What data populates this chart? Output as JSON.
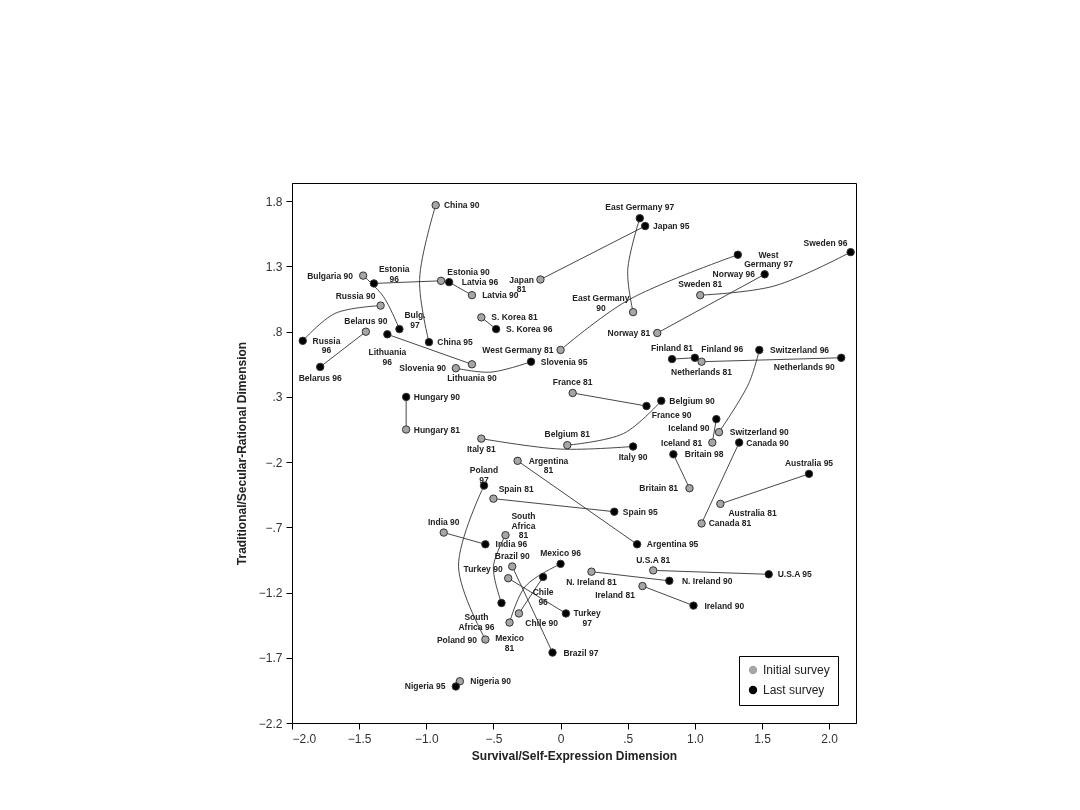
{
  "chart_data": {
    "type": "scatter",
    "xlabel": "Survival/Self-Expression Dimension",
    "ylabel": "Traditional/Secular-Rational Dimension",
    "xlim": [
      -2.0,
      2.2
    ],
    "ylim": [
      -2.2,
      1.94
    ],
    "xticks": [
      {
        "value": -2.0,
        "label": "−2.0"
      },
      {
        "value": -1.5,
        "label": "−1.5"
      },
      {
        "value": -1.0,
        "label": "−1.0"
      },
      {
        "value": -0.5,
        "label": "−.5"
      },
      0,
      {
        "value": 0.5,
        "label": ".5"
      },
      {
        "value": 1.0,
        "label": "1.0"
      },
      1.5,
      {
        "value": 2.0,
        "label": "2.0"
      }
    ],
    "yticks": [
      {
        "value": -2.2,
        "label": "−2.2"
      },
      {
        "value": -1.7,
        "label": "−1.7"
      },
      {
        "value": -1.2,
        "label": "−1.2"
      },
      {
        "value": -0.7,
        "label": "−.7"
      },
      {
        "value": -0.2,
        "label": "−.2"
      },
      {
        "value": 0.3,
        "label": ".3"
      },
      {
        "value": 0.8,
        "label": ".8"
      },
      1.3,
      1.8
    ],
    "grid": false,
    "legend": "bottom right",
    "series": [
      {
        "type": "line",
        "color": "#333333",
        "x": [
          -0.93,
          -1.05,
          -0.98,
          null,
          -1.47,
          -1.32,
          -1.2,
          null,
          -0.89,
          -1.39,
          null,
          -0.66,
          -0.83,
          null,
          -1.34,
          -1.68,
          -1.92,
          null,
          -1.45,
          -1.79,
          null,
          -0.66,
          -1.29,
          null,
          -0.78,
          -0.52,
          -0.22,
          null,
          -0.59,
          -0.48,
          null,
          -0.15,
          0.63,
          null,
          0.54,
          0.5,
          0.59,
          null,
          0.0,
          0.5,
          1.32,
          null,
          1.04,
          1.59,
          2.16,
          null,
          0.72,
          1.52,
          null,
          0.83,
          1.0,
          null,
          1.05,
          2.09,
          null,
          1.18,
          1.4,
          1.48,
          null,
          -1.15,
          -1.15,
          null,
          0.09,
          0.64,
          null,
          0.05,
          0.47,
          0.75,
          null,
          1.13,
          1.16,
          null,
          -0.59,
          0.0,
          0.54,
          null,
          0.96,
          0.84,
          null,
          1.05,
          1.33,
          null,
          1.19,
          1.85,
          null,
          -0.32,
          0.57,
          null,
          -0.5,
          0.4,
          null,
          -0.87,
          -0.56,
          null,
          -0.56,
          -0.76,
          -0.57,
          null,
          -0.41,
          -0.5,
          -0.44,
          null,
          -0.36,
          -0.06,
          null,
          -0.39,
          0.04,
          null,
          -0.38,
          -0.26,
          0.0,
          null,
          -0.31,
          -0.13,
          null,
          0.23,
          0.81,
          null,
          0.69,
          1.55,
          null,
          0.61,
          0.99,
          null,
          -0.75,
          -0.78
        ],
        "values": [
          1.77,
          1.2,
          0.72,
          null,
          1.23,
          1.07,
          0.82,
          null,
          1.19,
          1.17,
          null,
          1.08,
          1.18,
          null,
          1.0,
          0.94,
          0.73,
          null,
          0.8,
          0.53,
          null,
          0.55,
          0.78,
          null,
          0.52,
          0.49,
          0.57,
          null,
          0.91,
          0.82,
          null,
          1.2,
          1.61,
          null,
          0.95,
          1.27,
          1.67,
          null,
          0.66,
          1.04,
          1.39,
          null,
          1.08,
          1.15,
          1.41,
          null,
          0.79,
          1.24,
          null,
          0.59,
          0.6,
          null,
          0.57,
          0.6,
          null,
          0.03,
          0.4,
          0.66,
          null,
          0.05,
          0.3,
          null,
          0.33,
          0.23,
          null,
          -0.07,
          0.02,
          0.27,
          null,
          -0.05,
          0.13,
          null,
          -0.02,
          -0.1,
          -0.08,
          null,
          -0.4,
          -0.14,
          null,
          -0.67,
          -0.05,
          null,
          -0.52,
          -0.29,
          null,
          -0.19,
          -0.83,
          null,
          -0.48,
          -0.58,
          null,
          -0.74,
          -0.83,
          null,
          -1.56,
          -1.0,
          -0.38,
          null,
          -0.76,
          -1.0,
          -1.28,
          null,
          -1.0,
          -1.66,
          null,
          -1.09,
          -1.36,
          null,
          -1.43,
          -1.15,
          -0.98,
          null,
          -1.36,
          -1.08,
          null,
          -1.04,
          -1.11,
          null,
          -1.03,
          -1.06,
          null,
          -1.15,
          -1.3,
          null,
          -1.88,
          -1.92
        ]
      },
      {
        "name": "Initial survey",
        "color": "#a6a6a6",
        "marker": "circle",
        "x": [
          -0.93,
          -1.47,
          -0.89,
          -0.66,
          -1.34,
          -1.45,
          -0.66,
          -0.78,
          -0.59,
          -0.15,
          0.54,
          0.0,
          1.04,
          0.72,
          1.05,
          1.18,
          -1.15,
          0.09,
          0.05,
          1.13,
          -0.59,
          0.96,
          1.05,
          1.19,
          -0.32,
          -0.5,
          -0.87,
          -0.56,
          -0.41,
          -0.36,
          -0.39,
          -0.38,
          -0.31,
          0.23,
          0.69,
          0.61,
          -0.75
        ],
        "values": [
          1.77,
          1.23,
          1.19,
          1.08,
          1.0,
          0.8,
          0.55,
          0.52,
          0.91,
          1.2,
          0.95,
          0.66,
          1.08,
          0.79,
          0.57,
          0.03,
          0.05,
          0.33,
          -0.07,
          -0.05,
          -0.02,
          -0.4,
          -0.67,
          -0.52,
          -0.19,
          -0.48,
          -0.74,
          -1.56,
          -0.76,
          -1.0,
          -1.09,
          -1.43,
          -1.36,
          -1.04,
          -1.03,
          -1.15,
          -1.88
        ]
      },
      {
        "name": "Last survey",
        "color": "#000000",
        "marker": "circle",
        "x": [
          -0.98,
          -1.2,
          -1.39,
          -0.83,
          -1.92,
          -1.79,
          -1.29,
          -0.22,
          -0.48,
          0.63,
          0.59,
          1.32,
          2.16,
          1.52,
          0.83,
          1.0,
          2.09,
          1.48,
          -1.15,
          0.64,
          0.75,
          1.16,
          0.54,
          0.84,
          1.33,
          1.85,
          0.57,
          0.4,
          -0.56,
          -0.57,
          -0.44,
          -0.06,
          0.04,
          0.0,
          -0.13,
          0.81,
          1.55,
          0.99,
          -0.78
        ],
        "values": [
          0.72,
          0.82,
          1.17,
          1.18,
          0.73,
          0.53,
          0.78,
          0.57,
          0.82,
          1.61,
          1.67,
          1.39,
          1.41,
          1.24,
          0.59,
          0.6,
          0.6,
          0.66,
          0.3,
          0.23,
          0.27,
          0.13,
          -0.08,
          -0.14,
          -0.05,
          -0.29,
          -0.83,
          -0.58,
          -0.83,
          -0.38,
          -1.28,
          -1.66,
          -1.36,
          -0.98,
          -1.08,
          -1.11,
          -1.06,
          -1.3,
          -1.92
        ]
      }
    ],
    "annotations": [
      {
        "text": "China 90",
        "x": -0.93,
        "y": 1.77
      },
      {
        "text": "Estonia\n96",
        "x": -1.39,
        "y": 1.17
      },
      {
        "text": "Bulgaria 90",
        "x": -1.47,
        "y": 1.23
      },
      {
        "text": "Estonia 90",
        "x": -0.89,
        "y": 1.19
      },
      {
        "text": "Latvia 96",
        "x": -0.83,
        "y": 1.18
      },
      {
        "text": "Latvia 90",
        "x": -0.66,
        "y": 1.08
      },
      {
        "text": "Japan\n81",
        "x": -0.15,
        "y": 1.2
      },
      {
        "text": "S. Korea 81",
        "x": -0.59,
        "y": 0.91
      },
      {
        "text": "S. Korea 96",
        "x": -0.48,
        "y": 0.82
      },
      {
        "text": "Russia 90",
        "x": -1.34,
        "y": 1.0
      },
      {
        "text": "Belarus 90",
        "x": -1.45,
        "y": 0.8
      },
      {
        "text": "Bulg.\n97",
        "x": -1.2,
        "y": 0.82
      },
      {
        "text": "Russia\n96",
        "x": -1.92,
        "y": 0.73
      },
      {
        "text": "Lithuania\n96",
        "x": -1.29,
        "y": 0.78
      },
      {
        "text": "China 95",
        "x": -0.98,
        "y": 0.72
      },
      {
        "text": "Lithuania 90",
        "x": -0.66,
        "y": 0.55
      },
      {
        "text": "Belarus 96",
        "x": -1.79,
        "y": 0.53
      },
      {
        "text": "Slovenia 90",
        "x": -0.78,
        "y": 0.52
      },
      {
        "text": "Slovenia 95",
        "x": -0.22,
        "y": 0.57
      },
      {
        "text": "West Germany 81",
        "x": 0.0,
        "y": 0.66
      },
      {
        "text": "Hungary 90",
        "x": -1.15,
        "y": 0.3
      },
      {
        "text": "Hungary 81",
        "x": -1.15,
        "y": 0.05
      },
      {
        "text": "East Germany 97",
        "x": 0.59,
        "y": 1.67
      },
      {
        "text": "Japan 95",
        "x": 0.63,
        "y": 1.61
      },
      {
        "text": "West\nGermany 97",
        "x": 1.32,
        "y": 1.39
      },
      {
        "text": "Sweden 96",
        "x": 2.16,
        "y": 1.41
      },
      {
        "text": "Norway 96",
        "x": 1.52,
        "y": 1.24
      },
      {
        "text": "Sweden 81",
        "x": 1.04,
        "y": 1.08
      },
      {
        "text": "East Germany\n90",
        "x": 0.54,
        "y": 0.95
      },
      {
        "text": "Norway 81",
        "x": 0.72,
        "y": 0.79
      },
      {
        "text": "Switzerland 96",
        "x": 1.48,
        "y": 0.66
      },
      {
        "text": "Finland 81",
        "x": 0.83,
        "y": 0.59
      },
      {
        "text": "Netherlands 81",
        "x": 1.05,
        "y": 0.57
      },
      {
        "text": "Netherlands 90",
        "x": 2.09,
        "y": 0.6
      },
      {
        "text": "Finland 96",
        "x": 1.0,
        "y": 0.6
      },
      {
        "text": "Belgium 90",
        "x": 0.75,
        "y": 0.27
      },
      {
        "text": "France 81",
        "x": 0.09,
        "y": 0.33
      },
      {
        "text": "France 90",
        "x": 0.64,
        "y": 0.23
      },
      {
        "text": "Iceland 90",
        "x": 1.16,
        "y": 0.13
      },
      {
        "text": "Switzerland 90",
        "x": 1.18,
        "y": 0.03
      },
      {
        "text": "Belgium 81",
        "x": 0.05,
        "y": -0.07
      },
      {
        "text": "Canada 90",
        "x": 1.33,
        "y": -0.05
      },
      {
        "text": "Britain 98",
        "x": 0.84,
        "y": -0.14
      },
      {
        "text": "Iceland 81",
        "x": 1.13,
        "y": -0.05
      },
      {
        "text": "Italy 90",
        "x": 0.54,
        "y": -0.08
      },
      {
        "text": "Australia 95",
        "x": 1.85,
        "y": -0.29
      },
      {
        "text": "Britain 81",
        "x": 0.96,
        "y": -0.4
      },
      {
        "text": "Spain 95",
        "x": 0.4,
        "y": -0.58
      },
      {
        "text": "Australia 81",
        "x": 1.19,
        "y": -0.52
      },
      {
        "text": "Canada 81",
        "x": 1.05,
        "y": -0.67
      },
      {
        "text": "Argentina 95",
        "x": 0.57,
        "y": -0.83
      },
      {
        "text": "Mexico 96",
        "x": 0.0,
        "y": -0.98
      },
      {
        "text": "N. Ireland 81",
        "x": 0.23,
        "y": -1.04
      },
      {
        "text": "U.S.A 81",
        "x": 0.69,
        "y": -1.03
      },
      {
        "text": "N. Ireland 90",
        "x": 0.81,
        "y": -1.11
      },
      {
        "text": "U.S.A 95",
        "x": 1.55,
        "y": -1.06
      },
      {
        "text": "Ireland 81",
        "x": 0.61,
        "y": -1.15
      },
      {
        "text": "Ireland 90",
        "x": 0.99,
        "y": -1.3
      },
      {
        "text": "Chile\n96",
        "x": -0.13,
        "y": -1.08
      },
      {
        "text": "Turkey\n97",
        "x": 0.04,
        "y": -1.36
      },
      {
        "text": "Brazil 97",
        "x": -0.06,
        "y": -1.66
      },
      {
        "text": "Italy 81",
        "x": -0.59,
        "y": -0.02
      },
      {
        "text": "Argentina\n81",
        "x": -0.32,
        "y": -0.19
      },
      {
        "text": "Poland\n97",
        "x": -0.57,
        "y": -0.38
      },
      {
        "text": "Spain 81",
        "x": -0.5,
        "y": -0.48
      },
      {
        "text": "India 96",
        "x": -0.56,
        "y": -0.83
      },
      {
        "text": "India 90",
        "x": -0.87,
        "y": -0.74
      },
      {
        "text": "South\nAfrica\n81",
        "x": -0.41,
        "y": -0.76
      },
      {
        "text": "Brazil 90",
        "x": -0.36,
        "y": -1.0
      },
      {
        "text": "Turkey 90",
        "x": -0.39,
        "y": -1.09
      },
      {
        "text": "South\nAfrica 96",
        "x": -0.44,
        "y": -1.28
      },
      {
        "text": "Chile 90",
        "x": -0.31,
        "y": -1.36
      },
      {
        "text": "Mexico\n81",
        "x": -0.38,
        "y": -1.43
      },
      {
        "text": "Poland 90",
        "x": -0.56,
        "y": -1.56
      },
      {
        "text": "Nigeria 90",
        "x": -0.75,
        "y": -1.88
      },
      {
        "text": "Nigeria 95",
        "x": -0.78,
        "y": -1.92
      }
    ]
  }
}
